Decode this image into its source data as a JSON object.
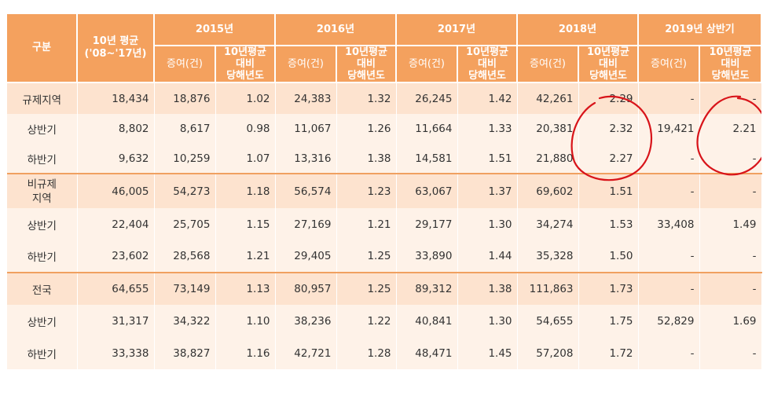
{
  "header": {
    "category": "구분",
    "avg_label_line1": "10년 평균",
    "avg_label_line2": "('08~'17년)",
    "years": [
      "2015년",
      "2016년",
      "2017년",
      "2018년",
      "2019년 상반기"
    ],
    "gift_label": "증여(건)",
    "ratio_line1": "10년평균",
    "ratio_line2": "대비",
    "ratio_line3": "당해년도"
  },
  "rows": [
    {
      "kind": "group",
      "label": "규제지역",
      "avg": "18,434",
      "values": [
        "18,876",
        "1.02",
        "24,383",
        "1.32",
        "26,245",
        "1.42",
        "42,261",
        "2.29",
        "-",
        "-"
      ]
    },
    {
      "kind": "sub",
      "label": "상반기",
      "avg": "8,802",
      "values": [
        "8,617",
        "0.98",
        "11,067",
        "1.26",
        "11,664",
        "1.33",
        "20,381",
        "2.32",
        "19,421",
        "2.21"
      ]
    },
    {
      "kind": "sub",
      "label": "하반기",
      "avg": "9,632",
      "values": [
        "10,259",
        "1.07",
        "13,316",
        "1.38",
        "14,581",
        "1.51",
        "21,880",
        "2.27",
        "-",
        "-"
      ]
    },
    {
      "kind": "group",
      "label": "비규제\n지역",
      "avg": "46,005",
      "values": [
        "54,273",
        "1.18",
        "56,574",
        "1.23",
        "63,067",
        "1.37",
        "69,602",
        "1.51",
        "-",
        "-"
      ]
    },
    {
      "kind": "sub",
      "label": "상반기",
      "avg": "22,404",
      "values": [
        "25,705",
        "1.15",
        "27,169",
        "1.21",
        "29,177",
        "1.30",
        "34,274",
        "1.53",
        "33,408",
        "1.49"
      ]
    },
    {
      "kind": "sub",
      "label": "하반기",
      "avg": "23,602",
      "values": [
        "28,568",
        "1.21",
        "29,405",
        "1.25",
        "33,890",
        "1.44",
        "35,328",
        "1.50",
        "-",
        "-"
      ]
    },
    {
      "kind": "group",
      "label": "전국",
      "avg": "64,655",
      "values": [
        "73,149",
        "1.13",
        "80,957",
        "1.25",
        "89,312",
        "1.38",
        "111,863",
        "1.73",
        "-",
        "-"
      ]
    },
    {
      "kind": "sub",
      "label": "상반기",
      "avg": "31,317",
      "values": [
        "34,322",
        "1.10",
        "38,236",
        "1.22",
        "40,841",
        "1.30",
        "54,655",
        "1.75",
        "52,829",
        "1.69"
      ]
    },
    {
      "kind": "sub",
      "label": "하반기",
      "avg": "33,338",
      "values": [
        "38,827",
        "1.16",
        "42,721",
        "1.28",
        "48,471",
        "1.45",
        "57,208",
        "1.72",
        "-",
        "-"
      ]
    }
  ],
  "annotation_color": "#d8141a"
}
